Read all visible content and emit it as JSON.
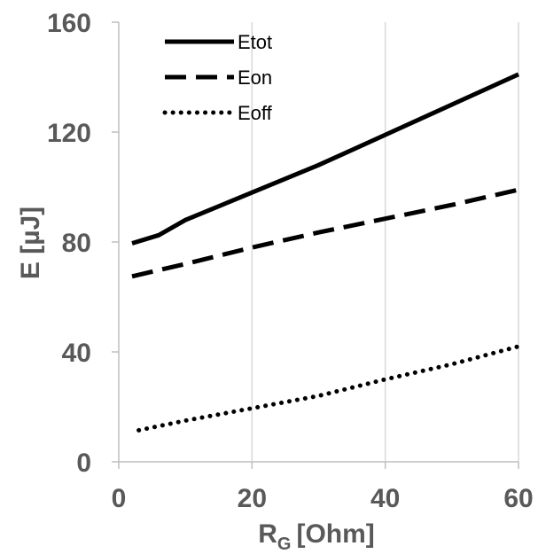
{
  "chart_data": {
    "type": "line",
    "xlabel": "R",
    "xlabel_sub": "G",
    "xlabel_unit": "[Ohm]",
    "ylabel": "E  [µJ]",
    "xlim": [
      0,
      60
    ],
    "ylim": [
      0,
      160
    ],
    "x_ticks": [
      "0",
      "20",
      "40",
      "60"
    ],
    "y_ticks": [
      "0",
      "40",
      "80",
      "120",
      "160"
    ],
    "grid": "vertical gridlines at x ticks",
    "legend_position": "top-left",
    "series": [
      {
        "name": "Etot",
        "style": "solid",
        "x": [
          2,
          6,
          10,
          20,
          30,
          40,
          50,
          60
        ],
        "y": [
          79.5,
          82.5,
          88,
          98,
          108,
          119,
          130,
          141
        ]
      },
      {
        "name": "Eon",
        "style": "dashed",
        "x": [
          2,
          10,
          20,
          30,
          40,
          50,
          60
        ],
        "y": [
          67.5,
          72,
          78,
          83.5,
          88.5,
          93.5,
          99
        ]
      },
      {
        "name": "Eoff",
        "style": "dotted",
        "x": [
          3,
          10,
          20,
          30,
          40,
          50,
          60
        ],
        "y": [
          11.5,
          15,
          19.5,
          24,
          30,
          35.5,
          42
        ]
      }
    ],
    "colors": {
      "series": "#000000",
      "axis_text": "#595959",
      "grid": "#d9d9d9",
      "axis_line": "#bfbfbf"
    }
  }
}
